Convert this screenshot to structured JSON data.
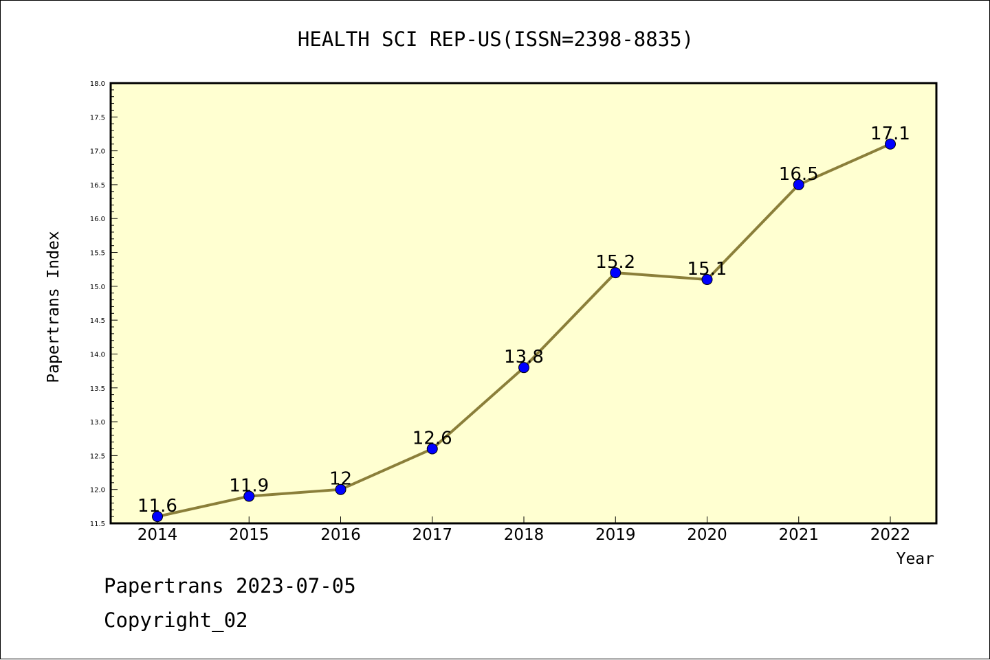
{
  "colors": {
    "plot_background": "#ffffd1",
    "line": "#8b7f3a",
    "marker": "#0000ff",
    "frame": "#000000"
  },
  "footer": {
    "line1": "Papertrans 2023-07-05",
    "line2": "Copyright_02"
  },
  "chart_data": {
    "type": "line",
    "title": "HEALTH SCI REP-US(ISSN=2398-8835)",
    "xlabel": "Year",
    "ylabel": "Papertrans Index",
    "x": [
      "2014",
      "2015",
      "2016",
      "2017",
      "2018",
      "2019",
      "2020",
      "2021",
      "2022"
    ],
    "series": [
      {
        "values": [
          11.6,
          11.9,
          12.0,
          12.6,
          13.8,
          15.2,
          15.1,
          16.5,
          17.1
        ],
        "labels": [
          "11.6",
          "11.9",
          "12",
          "12.6",
          "13.8",
          "15.2",
          "15.1",
          "16.5",
          "17.1"
        ]
      }
    ],
    "ylim": [
      11.5,
      18.0
    ],
    "yticks": [
      "11.5",
      "12.0",
      "12.5",
      "13.0",
      "13.5",
      "14.0",
      "14.5",
      "15.0",
      "15.5",
      "16.0",
      "16.5",
      "17.0",
      "17.5",
      "18.0"
    ],
    "grid": false,
    "legend": "none"
  }
}
